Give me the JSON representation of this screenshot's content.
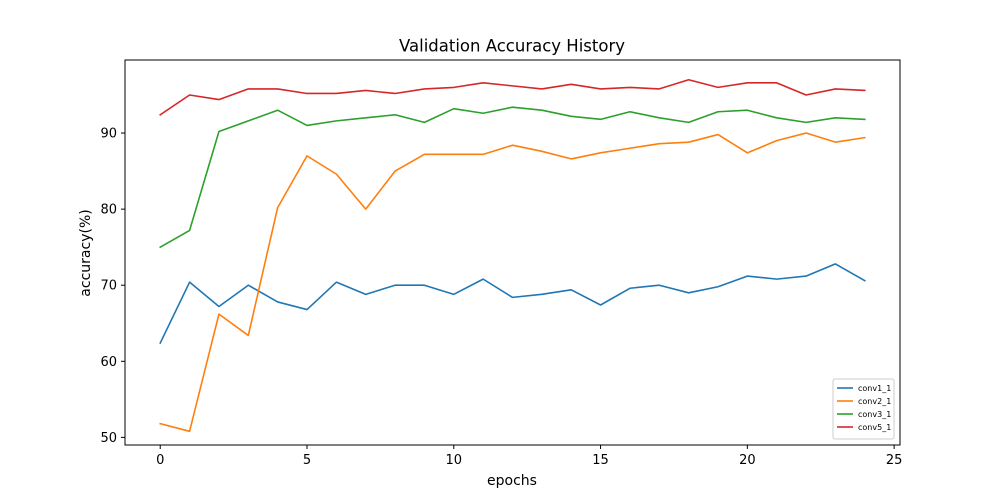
{
  "chart_data": {
    "type": "line",
    "title": "Validation Accuracy History",
    "xlabel": "epochs",
    "ylabel": "accuracy(%)",
    "xlim": [
      -1.2,
      25.2
    ],
    "ylim": [
      49,
      99.6
    ],
    "xticks": [
      0,
      5,
      10,
      15,
      20,
      25
    ],
    "yticks": [
      50,
      60,
      70,
      80,
      90
    ],
    "grid": false,
    "legend_position": "bottom-right",
    "x": [
      0,
      1,
      2,
      3,
      4,
      5,
      6,
      7,
      8,
      9,
      10,
      11,
      12,
      13,
      14,
      15,
      16,
      17,
      18,
      19,
      20,
      21,
      22,
      23,
      24
    ],
    "series": [
      {
        "name": "conv1_1",
        "color": "#1f77b4",
        "values": [
          62.4,
          70.4,
          67.2,
          70.0,
          67.8,
          66.8,
          70.4,
          68.8,
          70.0,
          70.0,
          68.8,
          70.8,
          68.4,
          68.8,
          69.4,
          67.4,
          69.6,
          70.0,
          69.0,
          69.8,
          71.2,
          70.8,
          71.2,
          72.8,
          70.6
        ]
      },
      {
        "name": "conv2_1",
        "color": "#ff7f0e",
        "values": [
          51.8,
          50.8,
          66.2,
          63.4,
          80.2,
          87.0,
          84.6,
          80.0,
          85.0,
          87.2,
          87.2,
          87.2,
          88.4,
          87.6,
          86.6,
          87.4,
          88.0,
          88.6,
          88.8,
          89.8,
          87.4,
          89.0,
          90.0,
          88.8,
          89.4
        ]
      },
      {
        "name": "conv3_1",
        "color": "#2ca02c",
        "values": [
          75.0,
          77.2,
          90.2,
          91.6,
          93.0,
          91.0,
          91.6,
          92.0,
          92.4,
          91.4,
          93.2,
          92.6,
          93.4,
          93.0,
          92.2,
          91.8,
          92.8,
          92.0,
          91.4,
          92.8,
          93.0,
          92.0,
          91.4,
          92.0,
          91.8
        ]
      },
      {
        "name": "conv5_1",
        "color": "#d62728",
        "values": [
          92.4,
          95.0,
          94.4,
          95.8,
          95.8,
          95.2,
          95.2,
          95.6,
          95.2,
          95.8,
          96.0,
          96.6,
          96.2,
          95.8,
          96.4,
          95.8,
          96.0,
          95.8,
          97.0,
          96.0,
          96.6,
          96.6,
          95.0,
          95.8,
          95.6
        ]
      }
    ]
  }
}
